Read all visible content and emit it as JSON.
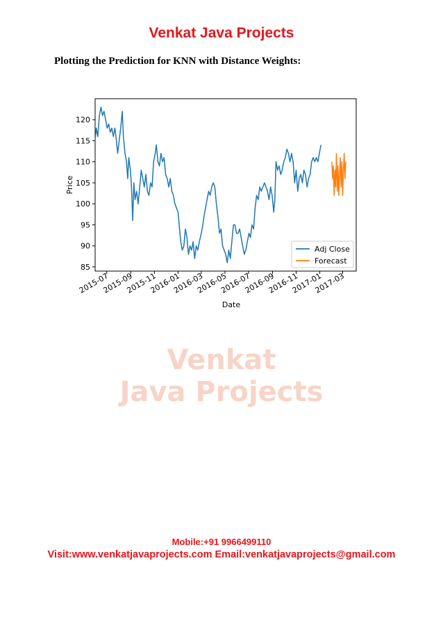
{
  "header": {
    "title": "Venkat Java Projects"
  },
  "heading": "Plotting the Prediction for KNN with Distance Weights:",
  "watermark": {
    "line1": "Venkat",
    "line2": "Java Projects"
  },
  "footer": {
    "mobile": "Mobile:+91 9966499110",
    "visit": "Visit:www.venkatjavaprojects.com Email:venkatjavaprojects@gmail.com"
  },
  "colors": {
    "brand_red": "#e8141c",
    "adj_close": "#1f77b4",
    "forecast": "#ff7f0e",
    "watermark": "#f7d4c8"
  },
  "chart_data": {
    "type": "line",
    "xlabel": "Date",
    "ylabel": "Price",
    "xlim": [
      "2015-06-01",
      "2017-04-05"
    ],
    "ylim": [
      84,
      125
    ],
    "x_ticks": [
      "2015-07",
      "2015-09",
      "2015-11",
      "2016-01",
      "2016-03",
      "2016-05",
      "2016-07",
      "2016-09",
      "2016-11",
      "2017-01",
      "2017-03"
    ],
    "y_ticks": [
      85,
      90,
      95,
      100,
      105,
      110,
      115,
      120
    ],
    "legend_position": "lower-right",
    "series": [
      {
        "name": "Adj Close",
        "color": "#1f77b4",
        "points": [
          [
            "2015-06-01",
            115
          ],
          [
            "2015-06-04",
            118
          ],
          [
            "2015-06-08",
            116
          ],
          [
            "2015-06-12",
            121
          ],
          [
            "2015-06-16",
            123
          ],
          [
            "2015-06-20",
            121
          ],
          [
            "2015-06-24",
            122
          ],
          [
            "2015-06-28",
            120
          ],
          [
            "2015-07-02",
            118
          ],
          [
            "2015-07-06",
            119
          ],
          [
            "2015-07-10",
            117
          ],
          [
            "2015-07-14",
            118
          ],
          [
            "2015-07-18",
            116
          ],
          [
            "2015-07-22",
            118
          ],
          [
            "2015-07-26",
            115
          ],
          [
            "2015-07-29",
            112
          ],
          [
            "2015-08-02",
            115
          ],
          [
            "2015-08-06",
            118
          ],
          [
            "2015-08-10",
            122
          ],
          [
            "2015-08-13",
            116
          ],
          [
            "2015-08-17",
            112
          ],
          [
            "2015-08-21",
            110
          ],
          [
            "2015-08-24",
            106
          ],
          [
            "2015-08-27",
            111
          ],
          [
            "2015-08-31",
            108
          ],
          [
            "2015-09-03",
            104
          ],
          [
            "2015-09-06",
            96
          ],
          [
            "2015-09-09",
            105
          ],
          [
            "2015-09-12",
            101
          ],
          [
            "2015-09-16",
            103
          ],
          [
            "2015-09-20",
            100
          ],
          [
            "2015-09-24",
            104
          ],
          [
            "2015-09-28",
            108
          ],
          [
            "2015-10-02",
            106
          ],
          [
            "2015-10-06",
            104
          ],
          [
            "2015-10-10",
            107
          ],
          [
            "2015-10-14",
            103
          ],
          [
            "2015-10-18",
            102
          ],
          [
            "2015-10-22",
            105
          ],
          [
            "2015-10-26",
            104
          ],
          [
            "2015-10-30",
            110
          ],
          [
            "2015-11-03",
            112
          ],
          [
            "2015-11-06",
            114
          ],
          [
            "2015-11-10",
            110
          ],
          [
            "2015-11-14",
            109
          ],
          [
            "2015-11-18",
            112
          ],
          [
            "2015-11-22",
            110
          ],
          [
            "2015-11-26",
            111
          ],
          [
            "2015-11-30",
            107
          ],
          [
            "2015-12-04",
            106
          ],
          [
            "2015-12-08",
            104
          ],
          [
            "2015-12-12",
            106
          ],
          [
            "2015-12-16",
            103
          ],
          [
            "2015-12-20",
            102
          ],
          [
            "2015-12-24",
            100
          ],
          [
            "2015-12-28",
            99
          ],
          [
            "2016-01-01",
            98
          ],
          [
            "2016-01-05",
            94
          ],
          [
            "2016-01-08",
            91
          ],
          [
            "2016-01-12",
            89
          ],
          [
            "2016-01-16",
            90
          ],
          [
            "2016-01-20",
            94
          ],
          [
            "2016-01-24",
            92
          ],
          [
            "2016-01-28",
            88
          ],
          [
            "2016-02-01",
            90
          ],
          [
            "2016-02-05",
            89
          ],
          [
            "2016-02-09",
            91
          ],
          [
            "2016-02-13",
            87
          ],
          [
            "2016-02-17",
            90
          ],
          [
            "2016-02-21",
            89
          ],
          [
            "2016-02-25",
            91
          ],
          [
            "2016-03-01",
            93
          ],
          [
            "2016-03-05",
            95
          ],
          [
            "2016-03-08",
            97
          ],
          [
            "2016-03-12",
            99
          ],
          [
            "2016-03-16",
            101
          ],
          [
            "2016-03-20",
            103
          ],
          [
            "2016-03-24",
            102
          ],
          [
            "2016-03-28",
            104
          ],
          [
            "2016-04-01",
            105
          ],
          [
            "2016-04-05",
            104
          ],
          [
            "2016-04-09",
            100
          ],
          [
            "2016-04-13",
            97
          ],
          [
            "2016-04-17",
            93
          ],
          [
            "2016-04-21",
            94
          ],
          [
            "2016-04-25",
            90
          ],
          [
            "2016-04-29",
            89
          ],
          [
            "2016-05-03",
            88
          ],
          [
            "2016-05-07",
            86
          ],
          [
            "2016-05-11",
            89
          ],
          [
            "2016-05-15",
            87
          ],
          [
            "2016-05-19",
            91
          ],
          [
            "2016-05-23",
            95
          ],
          [
            "2016-05-27",
            95
          ],
          [
            "2016-05-31",
            93
          ],
          [
            "2016-06-04",
            93
          ],
          [
            "2016-06-08",
            94
          ],
          [
            "2016-06-12",
            92
          ],
          [
            "2016-06-16",
            90
          ],
          [
            "2016-06-20",
            88
          ],
          [
            "2016-06-24",
            89
          ],
          [
            "2016-06-28",
            91
          ],
          [
            "2016-07-02",
            93
          ],
          [
            "2016-07-06",
            92
          ],
          [
            "2016-07-10",
            95
          ],
          [
            "2016-07-14",
            94
          ],
          [
            "2016-07-18",
            99
          ],
          [
            "2016-07-22",
            102
          ],
          [
            "2016-07-26",
            101
          ],
          [
            "2016-07-30",
            104
          ],
          [
            "2016-08-03",
            103
          ],
          [
            "2016-08-07",
            104
          ],
          [
            "2016-08-11",
            105
          ],
          [
            "2016-08-15",
            104
          ],
          [
            "2016-08-19",
            103
          ],
          [
            "2016-08-23",
            101
          ],
          [
            "2016-08-27",
            104
          ],
          [
            "2016-08-31",
            102
          ],
          [
            "2016-09-04",
            98
          ],
          [
            "2016-09-07",
            101
          ],
          [
            "2016-09-10",
            110
          ],
          [
            "2016-09-14",
            108
          ],
          [
            "2016-09-18",
            109
          ],
          [
            "2016-09-22",
            107
          ],
          [
            "2016-09-26",
            108
          ],
          [
            "2016-09-30",
            110
          ],
          [
            "2016-10-04",
            111
          ],
          [
            "2016-10-08",
            113
          ],
          [
            "2016-10-12",
            112
          ],
          [
            "2016-10-16",
            110
          ],
          [
            "2016-10-20",
            112
          ],
          [
            "2016-10-24",
            110
          ],
          [
            "2016-10-28",
            105
          ],
          [
            "2016-11-01",
            108
          ],
          [
            "2016-11-05",
            103
          ],
          [
            "2016-11-09",
            106
          ],
          [
            "2016-11-13",
            107
          ],
          [
            "2016-11-17",
            105
          ],
          [
            "2016-11-21",
            108
          ],
          [
            "2016-11-25",
            107
          ],
          [
            "2016-11-29",
            104
          ],
          [
            "2016-12-03",
            106
          ],
          [
            "2016-12-07",
            107
          ],
          [
            "2016-12-11",
            110
          ],
          [
            "2016-12-15",
            111
          ],
          [
            "2016-12-19",
            110
          ],
          [
            "2016-12-23",
            111
          ],
          [
            "2016-12-27",
            110
          ],
          [
            "2016-12-31",
            112
          ],
          [
            "2017-01-04",
            114
          ]
        ]
      },
      {
        "name": "Forecast",
        "color": "#ff7f0e",
        "points": [
          [
            "2017-02-01",
            110
          ],
          [
            "2017-02-03",
            106
          ],
          [
            "2017-02-05",
            109
          ],
          [
            "2017-02-07",
            102
          ],
          [
            "2017-02-09",
            108
          ],
          [
            "2017-02-11",
            104
          ],
          [
            "2017-02-13",
            112
          ],
          [
            "2017-02-15",
            103
          ],
          [
            "2017-02-17",
            109
          ],
          [
            "2017-02-19",
            102
          ],
          [
            "2017-02-21",
            107
          ],
          [
            "2017-02-23",
            111
          ],
          [
            "2017-02-25",
            104
          ],
          [
            "2017-02-27",
            110
          ],
          [
            "2017-03-01",
            102
          ],
          [
            "2017-03-03",
            108
          ],
          [
            "2017-03-05",
            112
          ],
          [
            "2017-03-07",
            106
          ],
          [
            "2017-03-09",
            110
          ]
        ]
      }
    ]
  }
}
